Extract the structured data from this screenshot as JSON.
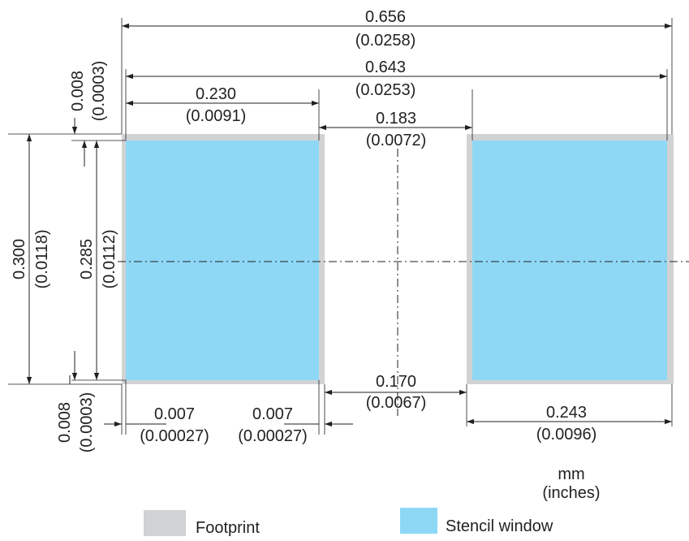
{
  "colors": {
    "footprint": "#d1d2d4",
    "stencil": "#8ed8f6",
    "ink": "#231f20"
  },
  "dims": {
    "overall_width": {
      "mm": "0.656",
      "in": "(0.0258)"
    },
    "stencil_span": {
      "mm": "0.643",
      "in": "(0.0253)"
    },
    "pad_width": {
      "mm": "0.230",
      "in": "(0.0091)"
    },
    "pad_gap": {
      "mm": "0.183",
      "in": "(0.0072)"
    },
    "top_offset": {
      "mm": "0.008",
      "in": "(0.0003)"
    },
    "pad_height": {
      "mm": "0.300",
      "in": "(0.0118)"
    },
    "stencil_height": {
      "mm": "0.285",
      "in": "(0.0112)"
    },
    "bottom_offset": {
      "mm": "0.008",
      "in": "(0.0003)"
    },
    "left_inset": {
      "mm": "0.007",
      "in": "(0.00027)"
    },
    "right_inset": {
      "mm": "0.007",
      "in": "(0.00027)"
    },
    "stencil_gap": {
      "mm": "0.170",
      "in": "(0.0067)"
    },
    "stencil_width": {
      "mm": "0.243",
      "in": "(0.0096)"
    }
  },
  "units": {
    "primary": "mm",
    "secondary": "(inches)"
  },
  "legend": {
    "footprint": "Footprint",
    "stencil": "Stencil window"
  }
}
